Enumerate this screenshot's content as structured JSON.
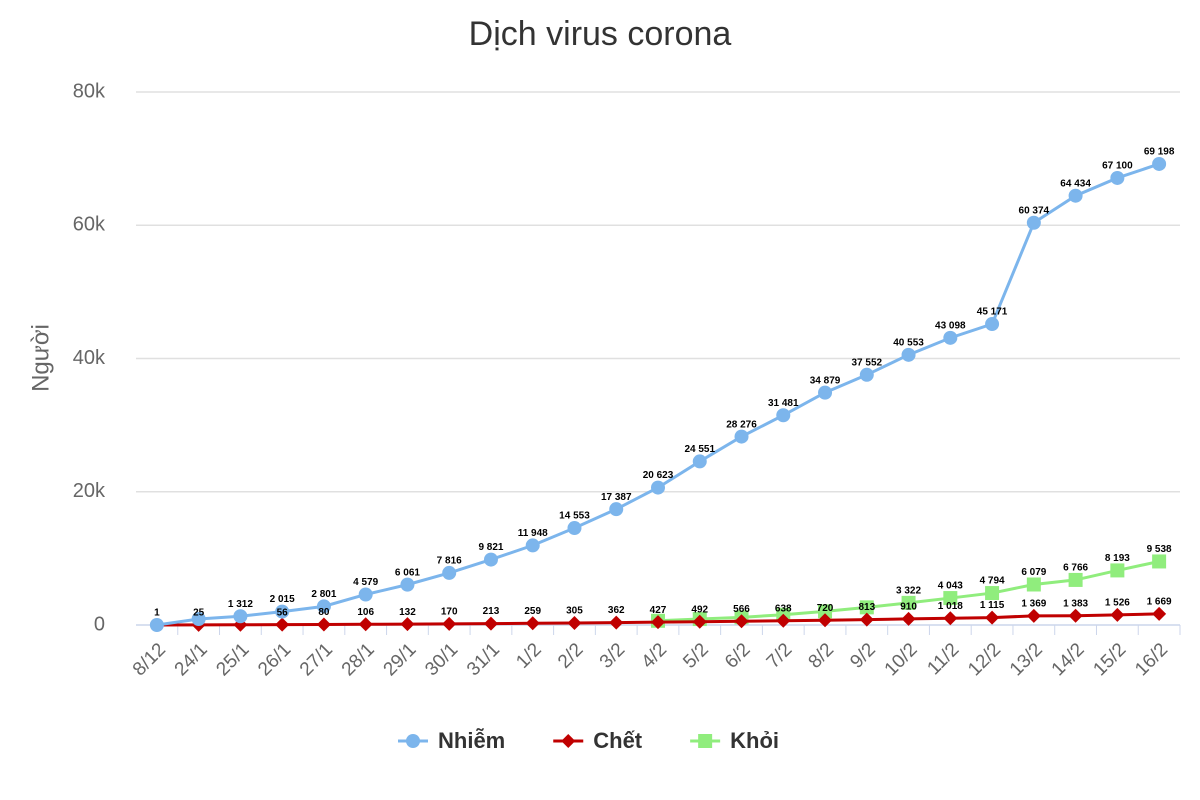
{
  "chart_data": {
    "type": "line",
    "title": "Dịch virus corona",
    "y_label": "Người",
    "categories": [
      "8/12",
      "24/1",
      "25/1",
      "26/1",
      "27/1",
      "28/1",
      "29/1",
      "30/1",
      "31/1",
      "1/2",
      "2/2",
      "3/2",
      "4/2",
      "5/2",
      "6/2",
      "7/2",
      "8/2",
      "9/2",
      "10/2",
      "11/2",
      "12/2",
      "13/2",
      "14/2",
      "15/2",
      "16/2"
    ],
    "series": [
      {
        "name": "Nhiễm",
        "color": "#7cb5ec",
        "marker": "circle",
        "values": [
          1,
          900,
          1312,
          2015,
          2801,
          4579,
          6061,
          7816,
          9821,
          11948,
          14553,
          17387,
          20623,
          24551,
          28276,
          31481,
          34879,
          37552,
          40553,
          43098,
          45171,
          60374,
          64434,
          67100,
          69198
        ],
        "value_labels": [
          "1",
          null,
          "1 312",
          "2 015",
          "2 801",
          "4 579",
          "6 061",
          "7 816",
          "9 821",
          "11 948",
          "14 553",
          "17 387",
          "20 623",
          "24 551",
          "28 276",
          "31 481",
          "34 879",
          "37 552",
          "40 553",
          "43 098",
          "45 171",
          "60 374",
          "64 434",
          "67 100",
          "69 198"
        ]
      },
      {
        "name": "Chết",
        "color": "#c00000",
        "marker": "diamond",
        "values": [
          0,
          25,
          41,
          56,
          80,
          106,
          132,
          170,
          213,
          259,
          305,
          362,
          427,
          492,
          566,
          638,
          720,
          813,
          910,
          1018,
          1115,
          1369,
          1383,
          1526,
          1669
        ],
        "value_labels": [
          null,
          "25",
          null,
          "56",
          "80",
          "106",
          "132",
          "170",
          "213",
          "259",
          "305",
          "362",
          "427",
          "492",
          "566",
          "638",
          "720",
          "813",
          "910",
          "1 018",
          "1 115",
          "1 369",
          "1 383",
          "1 526",
          "1 669"
        ]
      },
      {
        "name": "Khỏi",
        "color": "#90ed7d",
        "marker": "square",
        "values": [
          null,
          null,
          null,
          null,
          null,
          null,
          null,
          null,
          null,
          null,
          null,
          null,
          632,
          892,
          1153,
          1540,
          2050,
          2649,
          3322,
          4043,
          4794,
          6079,
          6766,
          8193,
          9538
        ],
        "value_labels": [
          null,
          null,
          null,
          null,
          null,
          null,
          null,
          null,
          null,
          null,
          null,
          null,
          null,
          null,
          null,
          null,
          null,
          null,
          "3 322",
          "4 043",
          "4 794",
          "6 079",
          "6 766",
          "8 193",
          "9 538"
        ]
      }
    ],
    "ylim": [
      0,
      80000
    ],
    "yticks": [
      {
        "value": 0,
        "label": "0"
      },
      {
        "value": 20000,
        "label": "20k"
      },
      {
        "value": 40000,
        "label": "40k"
      },
      {
        "value": 60000,
        "label": "60k"
      },
      {
        "value": 80000,
        "label": "80k"
      }
    ],
    "grid": true,
    "legend": "bottom"
  }
}
